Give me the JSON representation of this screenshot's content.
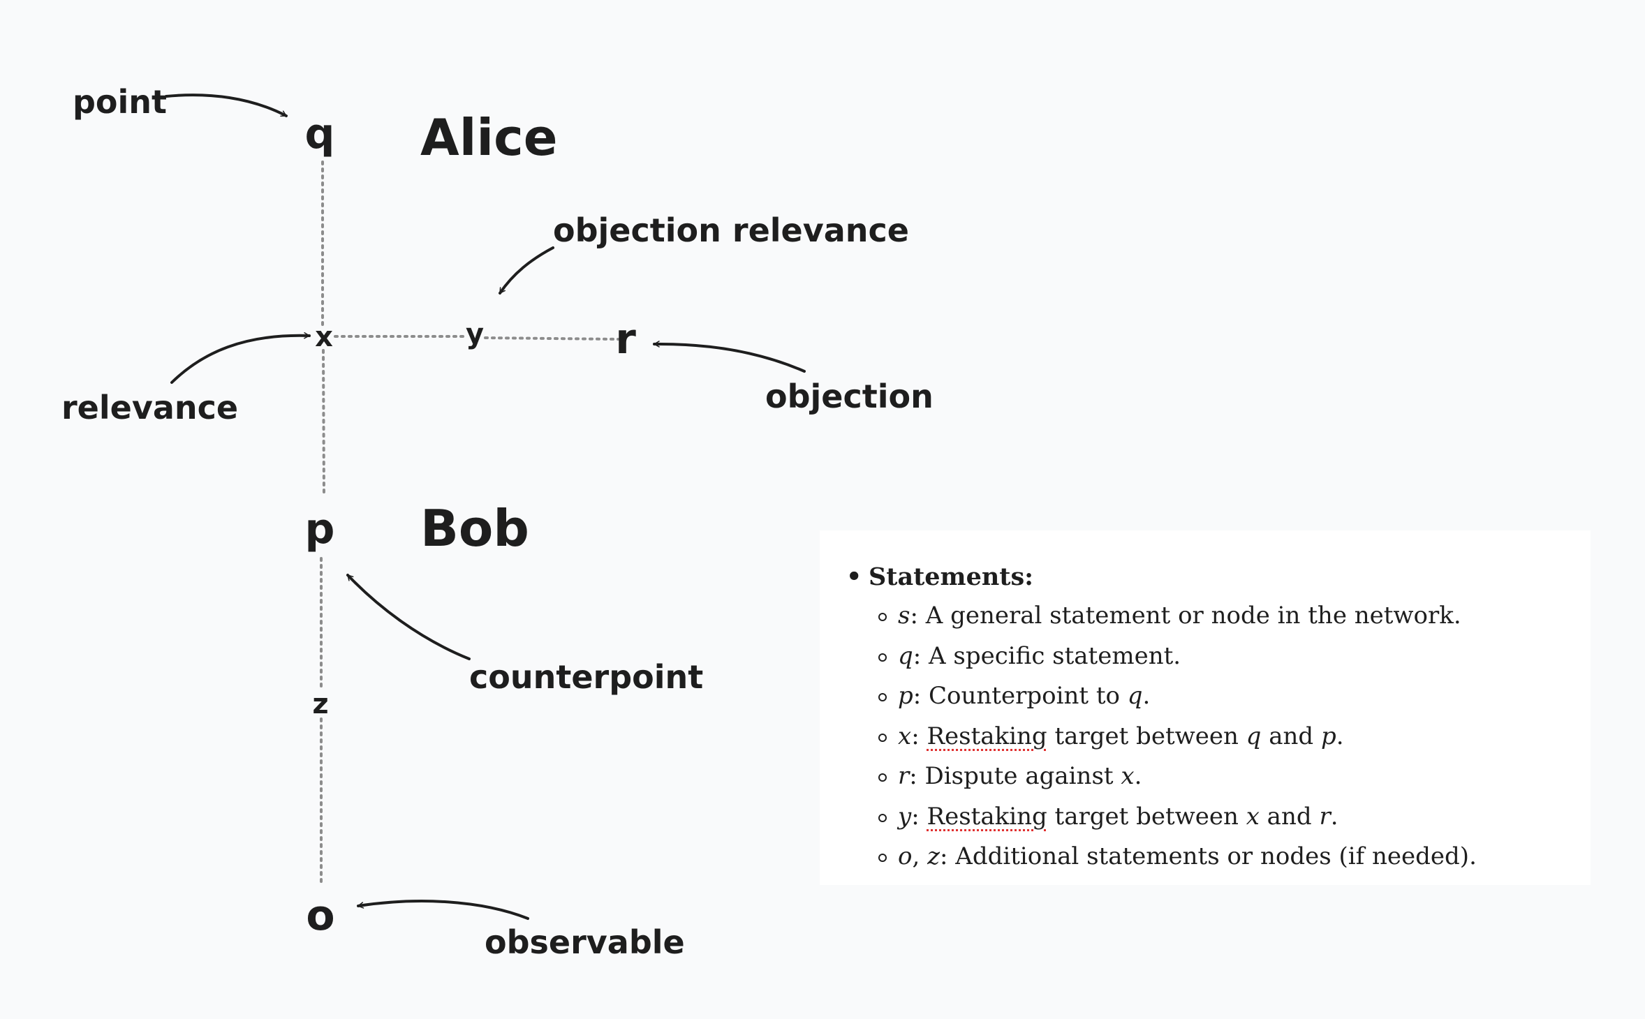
{
  "nodes": {
    "q": "q",
    "x": "x",
    "y": "y",
    "r": "r",
    "p": "p",
    "z": "z",
    "o": "o"
  },
  "people": {
    "alice": "Alice",
    "bob": "Bob"
  },
  "annotations": {
    "point": "point",
    "objection_relevance": "objection relevance",
    "relevance": "relevance",
    "objection": "objection",
    "counterpoint": "counterpoint",
    "observable": "observable"
  },
  "legend": {
    "title": "Statements:",
    "items": [
      {
        "symbols": [
          [
            "s",
            ""
          ]
        ],
        "parts": [
          ": A general statement or node in the network."
        ]
      },
      {
        "symbols": [
          [
            "q",
            ""
          ]
        ],
        "parts": [
          ": A specific statement."
        ]
      },
      {
        "symbols": [
          [
            "p",
            ""
          ]
        ],
        "parts": [
          ": Counterpoint to ",
          "q",
          "."
        ]
      },
      {
        "symbols": [
          [
            "x",
            ""
          ]
        ],
        "parts": [
          ": ",
          "Restaking",
          " target between ",
          "q",
          " and ",
          "p",
          "."
        ]
      },
      {
        "symbols": [
          [
            "r",
            ""
          ]
        ],
        "parts": [
          ": Dispute against ",
          "x",
          "."
        ]
      },
      {
        "symbols": [
          [
            "y",
            ""
          ]
        ],
        "parts": [
          ": ",
          "Restaking",
          " target between ",
          "x",
          " and ",
          "r",
          "."
        ]
      },
      {
        "symbols": [
          [
            "o",
            ", "
          ],
          [
            "z",
            ""
          ]
        ],
        "parts": [
          ": Additional statements or nodes (if needed)."
        ]
      }
    ]
  }
}
